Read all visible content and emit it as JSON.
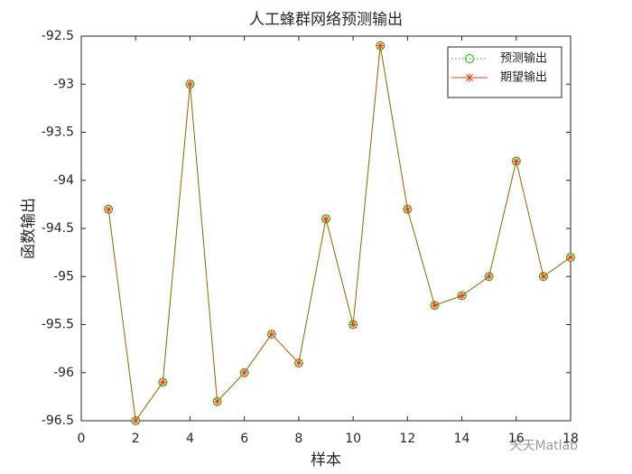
{
  "chart_data": {
    "type": "line",
    "title": "人工蜂群网络预测输出",
    "xlabel": "样本",
    "ylabel": "函数输出",
    "x": [
      1,
      2,
      3,
      4,
      5,
      6,
      7,
      8,
      9,
      10,
      11,
      12,
      13,
      14,
      15,
      16,
      17,
      18
    ],
    "series": [
      {
        "name": "预测输出",
        "color": "#00c000",
        "marker": "circle",
        "linestyle": "dotted",
        "values": [
          -94.3,
          -96.5,
          -96.1,
          -93.0,
          -96.3,
          -96.0,
          -95.6,
          -95.9,
          -94.4,
          -95.5,
          -92.6,
          -94.3,
          -95.3,
          -95.2,
          -95.0,
          -93.8,
          -95.0,
          -94.8
        ]
      },
      {
        "name": "期望输出",
        "color": "#e8400c",
        "marker": "asterisk",
        "linestyle": "solid",
        "values": [
          -94.3,
          -96.5,
          -96.1,
          -93.0,
          -96.3,
          -96.0,
          -95.6,
          -95.9,
          -94.4,
          -95.5,
          -92.6,
          -94.3,
          -95.3,
          -95.2,
          -95.0,
          -93.8,
          -95.0,
          -94.8
        ]
      }
    ],
    "xlim": [
      0,
      18
    ],
    "xticks": [
      0,
      2,
      4,
      6,
      8,
      10,
      12,
      14,
      16,
      18
    ],
    "ylim": [
      -96.5,
      -92.5
    ],
    "yticks": [
      -96.5,
      -96,
      -95.5,
      -95,
      -94.5,
      -94,
      -93.5,
      -93,
      -92.5
    ],
    "legend": "top-right",
    "grid": false,
    "watermark": "天天Matlab"
  }
}
